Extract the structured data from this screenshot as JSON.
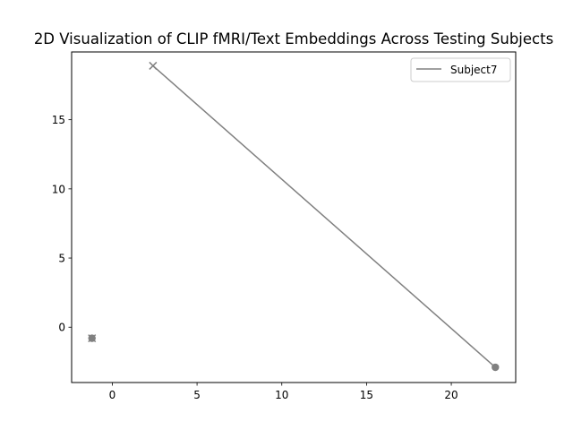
{
  "chart_data": {
    "type": "scatter",
    "title": "2D Visualization of CLIP fMRI/Text Embeddings Across Testing Subjects",
    "xlabel": "",
    "ylabel": "",
    "xlim": [
      -2.4,
      23.8
    ],
    "ylim": [
      -4.0,
      19.9
    ],
    "x_ticks": [
      0,
      5,
      10,
      15,
      20
    ],
    "y_ticks": [
      0,
      5,
      10,
      15
    ],
    "grid": false,
    "legend": {
      "placement": "upper right",
      "entries": [
        "Subject7"
      ]
    },
    "series": [
      {
        "name": "Subject7",
        "color": "#808080",
        "line": {
          "x": [
            2.4,
            22.6
          ],
          "y": [
            18.9,
            -2.9
          ]
        },
        "points": [
          {
            "x": 2.4,
            "y": 18.9,
            "marker": "x"
          },
          {
            "x": 22.6,
            "y": -2.9,
            "marker": "o"
          },
          {
            "x": -1.2,
            "y": -0.8,
            "marker": "o"
          },
          {
            "x": -1.2,
            "y": -0.8,
            "marker": "x"
          }
        ]
      }
    ]
  }
}
